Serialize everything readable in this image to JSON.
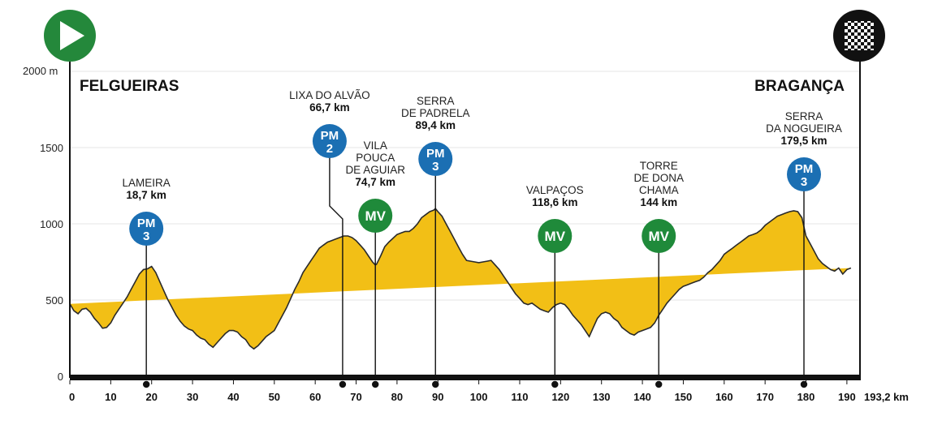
{
  "chart_data": {
    "type": "area",
    "y_unit_label": "2000 m",
    "y_ticks": [
      0,
      500,
      1000,
      1500
    ],
    "ylim": [
      0,
      2000
    ],
    "x_ticks": [
      0,
      10,
      20,
      30,
      40,
      50,
      60,
      70,
      80,
      90,
      100,
      110,
      120,
      130,
      140,
      150,
      160,
      170,
      180,
      190
    ],
    "x_end_label": "193,2 km",
    "xlim": [
      0,
      193.2
    ],
    "start_city": "FELGUEIRAS",
    "finish_city": "BRAGANÇA",
    "fill_color": "#f2bf16",
    "km": [
      0,
      1,
      2,
      3,
      4,
      5,
      6,
      7,
      8,
      9,
      10,
      11,
      12,
      13,
      14,
      15,
      16,
      17,
      18,
      19,
      20,
      21,
      22,
      23,
      24,
      25,
      26,
      27,
      28,
      29,
      30,
      31,
      32,
      33,
      34,
      35,
      36,
      37,
      38,
      39,
      40,
      41,
      42,
      43,
      44,
      45,
      46,
      47,
      48,
      49,
      50,
      51,
      52,
      53,
      54,
      55,
      56,
      57,
      58,
      59,
      60,
      61,
      62,
      63,
      64,
      65,
      66,
      67,
      68,
      69,
      70,
      71,
      72,
      73,
      74,
      74.7,
      75,
      76,
      77,
      78,
      79,
      80,
      81,
      82,
      83,
      84,
      85,
      86,
      87,
      88,
      89,
      89.4,
      90,
      91,
      92,
      93,
      94,
      95,
      96,
      97,
      98,
      99,
      100,
      101,
      102,
      103,
      104,
      105,
      106,
      107,
      108,
      109,
      110,
      111,
      112,
      113,
      114,
      115,
      116,
      117,
      118,
      119,
      120,
      121,
      122,
      123,
      124,
      125,
      126,
      127,
      128,
      129,
      130,
      131,
      132,
      133,
      134,
      135,
      136,
      137,
      138,
      139,
      140,
      141,
      142,
      143,
      144,
      145,
      146,
      147,
      148,
      149,
      150,
      151,
      152,
      153,
      154,
      155,
      156,
      157,
      158,
      159,
      160,
      161,
      162,
      163,
      164,
      165,
      166,
      167,
      168,
      169,
      170,
      171,
      172,
      173,
      174,
      175,
      176,
      177,
      178,
      179,
      179.5,
      180,
      181,
      182,
      183,
      184,
      185,
      186,
      187,
      188,
      189,
      190,
      191,
      192,
      193.2
    ],
    "elevation": [
      475,
      430,
      410,
      440,
      445,
      420,
      380,
      350,
      315,
      320,
      350,
      400,
      440,
      480,
      520,
      570,
      620,
      670,
      700,
      705,
      720,
      680,
      620,
      560,
      500,
      450,
      400,
      360,
      330,
      310,
      300,
      270,
      250,
      240,
      210,
      190,
      220,
      250,
      280,
      300,
      300,
      290,
      260,
      240,
      200,
      180,
      200,
      230,
      260,
      280,
      300,
      350,
      400,
      450,
      510,
      570,
      620,
      680,
      720,
      760,
      800,
      840,
      860,
      880,
      890,
      900,
      910,
      920,
      920,
      910,
      890,
      860,
      830,
      790,
      750,
      730,
      735,
      790,
      850,
      880,
      905,
      930,
      940,
      950,
      950,
      970,
      1000,
      1040,
      1060,
      1080,
      1090,
      1100,
      1080,
      1050,
      1000,
      950,
      900,
      850,
      800,
      760,
      755,
      750,
      745,
      750,
      755,
      760,
      730,
      700,
      660,
      620,
      580,
      540,
      510,
      480,
      470,
      480,
      460,
      440,
      430,
      420,
      450,
      470,
      480,
      470,
      440,
      400,
      370,
      340,
      300,
      260,
      320,
      380,
      410,
      420,
      410,
      380,
      360,
      320,
      300,
      280,
      270,
      290,
      300,
      310,
      320,
      350,
      400,
      440,
      480,
      510,
      540,
      570,
      590,
      600,
      610,
      620,
      630,
      650,
      680,
      700,
      730,
      760,
      800,
      820,
      840,
      860,
      880,
      900,
      920,
      930,
      940,
      960,
      990,
      1010,
      1030,
      1050,
      1060,
      1070,
      1080,
      1085,
      1080,
      1040,
      980,
      920,
      870,
      820,
      770,
      740,
      720,
      700,
      690,
      710,
      670,
      700,
      710
    ]
  },
  "markers": [
    {
      "name": "LAMEIRA",
      "km": 18.7,
      "km_label": "18,7 km",
      "type": "PM",
      "cat": "3"
    },
    {
      "name": "LIXA DO ALVÃO",
      "km": 66.7,
      "km_label": "66,7 km",
      "type": "PM",
      "cat": "2"
    },
    {
      "name_lines": [
        "VILA",
        "POUCA",
        "DE AGUIAR"
      ],
      "km": 74.7,
      "km_label": "74,7 km",
      "type": "MV"
    },
    {
      "name_lines": [
        "SERRA",
        "DE PADRELA"
      ],
      "km": 89.4,
      "km_label": "89,4 km",
      "type": "PM",
      "cat": "3"
    },
    {
      "name": "VALPAÇOS",
      "km": 118.6,
      "km_label": "118,6 km",
      "type": "MV"
    },
    {
      "name_lines": [
        "TORRE",
        "DE DONA",
        "CHAMA"
      ],
      "km": 144,
      "km_label": "144 km",
      "type": "MV"
    },
    {
      "name_lines": [
        "SERRA",
        "DA NOGUEIRA"
      ],
      "km": 179.5,
      "km_label": "179,5 km",
      "type": "PM",
      "cat": "3"
    }
  ],
  "colors": {
    "pm_badge": "#1b6fb3",
    "mv_badge": "#1f8a3a",
    "start_icon": "#24883b",
    "finish_icon": "#111111",
    "axis": "#111111"
  },
  "icons": {
    "start": "play-icon",
    "finish": "checkered-flag-icon"
  }
}
